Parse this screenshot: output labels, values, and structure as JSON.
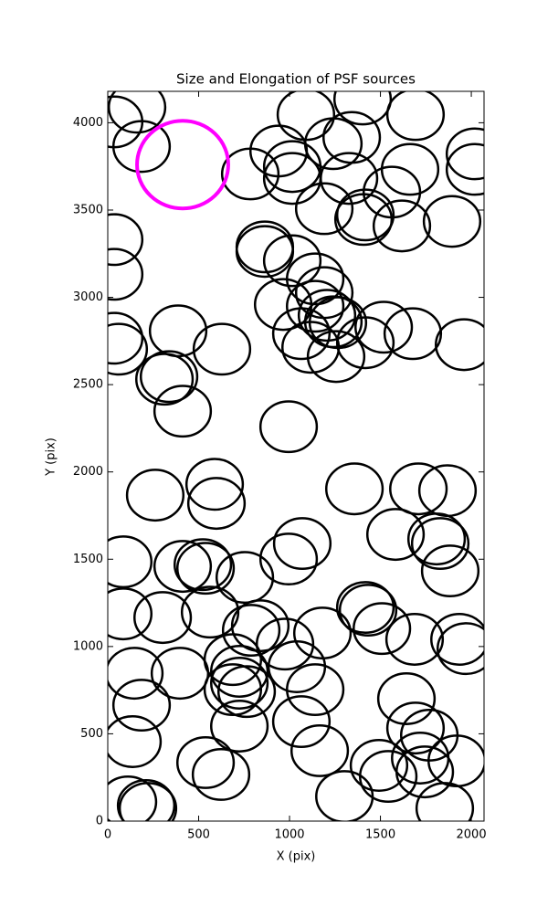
{
  "chart_data": {
    "type": "scatter",
    "title": "Size and Elongation of PSF sources",
    "x_label": "X (pix)",
    "y_label": "Y (pix)",
    "xlim": [
      0,
      2070
    ],
    "ylim": [
      0,
      4180
    ],
    "xticks": [
      0,
      500,
      1000,
      1500,
      2000
    ],
    "yticks": [
      0,
      500,
      1000,
      1500,
      2000,
      2500,
      3000,
      3500,
      4000
    ],
    "series": [
      {
        "color": "#000000",
        "width": 310,
        "height": 290,
        "x": [
          161,
          35,
          186,
          784,
          1090,
          1402,
          1693,
          940,
          1015,
          1015,
          1241,
          1342,
          1327,
          1663,
          1563,
          1191,
          1417,
          1407,
          1618,
          1894,
          2020,
          2020,
          35,
          35,
          864,
          864,
          1015,
          1141,
          1191,
          965,
          1141,
          1206,
          1241,
          1266,
          1065,
          1116,
          1256,
          1417,
          1518,
          1678,
          1960,
          35,
          60,
          387,
          628,
          312,
          337,
          412,
          995,
          261,
          588,
          598,
          1357,
          1709,
          1869,
          1583,
          1809,
          1829,
          1884,
          1070,
          995,
          85,
          412,
          523,
          538,
          754,
          85,
          302,
          563,
          789,
          839,
          975,
          1181,
          1417,
          1432,
          1508,
          1688,
          1935,
          1970,
          146,
          397,
          688,
          724,
          724,
          688,
          764,
          1040,
          1141,
          186,
          136,
          724,
          1065,
          1166,
          1643,
          1693,
          1769,
          1719,
          1744,
          1920,
          538,
          623,
          1492,
          1543,
          1302,
          1854,
          111,
          211,
          221
        ],
        "y": [
          4089,
          4005,
          3864,
          3707,
          4047,
          4136,
          4047,
          3838,
          3749,
          3681,
          3880,
          3916,
          3681,
          3733,
          3603,
          3508,
          3472,
          3446,
          3409,
          3435,
          3822,
          3733,
          3331,
          3132,
          3289,
          3263,
          3210,
          3106,
          3027,
          2959,
          2949,
          2897,
          2860,
          2855,
          2792,
          2714,
          2661,
          2740,
          2829,
          2792,
          2729,
          2766,
          2703,
          2808,
          2703,
          2531,
          2546,
          2348,
          2259,
          1867,
          1929,
          1820,
          1903,
          1903,
          1893,
          1642,
          1616,
          1590,
          1433,
          1590,
          1501,
          1485,
          1459,
          1469,
          1448,
          1396,
          1187,
          1166,
          1197,
          1093,
          1119,
          1014,
          1077,
          1224,
          1208,
          1103,
          1041,
          1041,
          988,
          847,
          847,
          925,
          858,
          790,
          753,
          742,
          884,
          753,
          664,
          455,
          544,
          570,
          403,
          701,
          533,
          492,
          361,
          282,
          345,
          335,
          267,
          319,
          256,
          141,
          73,
          110,
          89,
          73
        ]
      },
      {
        "color": "#ff00ff",
        "width": 502,
        "height": 502,
        "x": [
          412
        ],
        "y": [
          3760
        ]
      }
    ]
  }
}
